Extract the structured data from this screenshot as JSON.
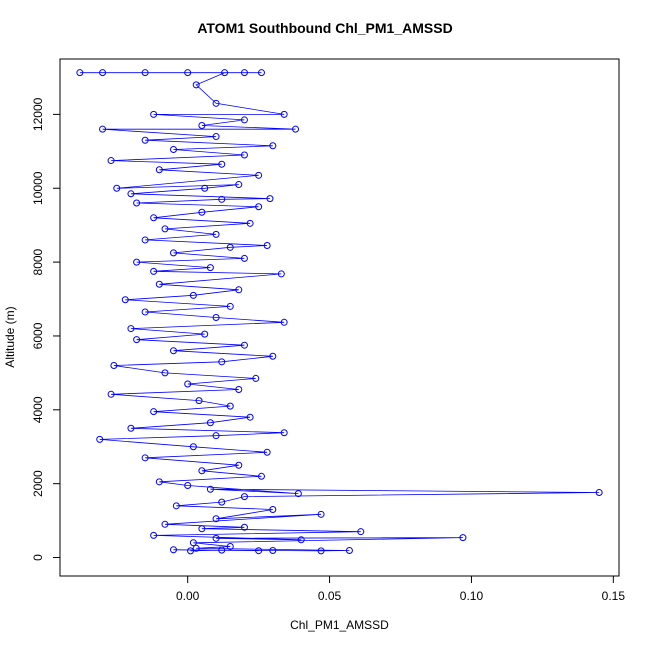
{
  "chart_data": {
    "type": "scatter",
    "title": "ATOM1 Southbound Chl_PM1_AMSSD",
    "xlabel": "Chl_PM1_AMSSD",
    "ylabel": "Altitude (m)",
    "xlim": [
      -0.045,
      0.152
    ],
    "ylim": [
      -500,
      13500
    ],
    "xticks": [
      0.0,
      0.05,
      0.1,
      0.15
    ],
    "xtick_labels": [
      "0.00",
      "0.05",
      "0.10",
      "0.15"
    ],
    "yticks": [
      0,
      2000,
      4000,
      6000,
      8000,
      10000,
      12000
    ],
    "ytick_labels": [
      "0",
      "2000",
      "4000",
      "6000",
      "8000",
      "10000",
      "12000"
    ],
    "marker": "open-circle",
    "line": "connected",
    "color": "#0000ff",
    "grid": false,
    "series": [
      {
        "points": [
          [
            0.001,
            180
          ],
          [
            0.012,
            200
          ],
          [
            0.025,
            185
          ],
          [
            -0.005,
            210
          ],
          [
            0.03,
            190
          ],
          [
            0.047,
            180
          ],
          [
            0.057,
            190
          ],
          [
            0.003,
            250
          ],
          [
            0.015,
            300
          ],
          [
            0.002,
            400
          ],
          [
            0.097,
            540
          ],
          [
            0.01,
            520
          ],
          [
            0.04,
            480
          ],
          [
            -0.012,
            600
          ],
          [
            0.061,
            700
          ],
          [
            0.005,
            780
          ],
          [
            0.02,
            820
          ],
          [
            -0.008,
            900
          ],
          [
            0.047,
            1170
          ],
          [
            0.01,
            1050
          ],
          [
            0.03,
            1300
          ],
          [
            -0.004,
            1400
          ],
          [
            0.012,
            1500
          ],
          [
            0.02,
            1650
          ],
          [
            0.145,
            1760
          ],
          [
            0.008,
            1850
          ],
          [
            0.039,
            1730
          ],
          [
            0.0,
            1950
          ],
          [
            -0.01,
            2050
          ],
          [
            0.026,
            2200
          ],
          [
            0.005,
            2350
          ],
          [
            0.018,
            2500
          ],
          [
            -0.015,
            2700
          ],
          [
            0.028,
            2850
          ],
          [
            0.002,
            3000
          ],
          [
            -0.031,
            3200
          ],
          [
            0.01,
            3300
          ],
          [
            0.034,
            3380
          ],
          [
            -0.02,
            3500
          ],
          [
            0.008,
            3650
          ],
          [
            0.022,
            3800
          ],
          [
            -0.012,
            3950
          ],
          [
            0.015,
            4100
          ],
          [
            0.004,
            4250
          ],
          [
            -0.027,
            4420
          ],
          [
            0.018,
            4550
          ],
          [
            0.0,
            4700
          ],
          [
            0.024,
            4850
          ],
          [
            -0.008,
            5000
          ],
          [
            -0.026,
            5200
          ],
          [
            0.012,
            5300
          ],
          [
            0.03,
            5450
          ],
          [
            -0.005,
            5600
          ],
          [
            0.02,
            5750
          ],
          [
            -0.018,
            5900
          ],
          [
            0.006,
            6050
          ],
          [
            -0.02,
            6200
          ],
          [
            0.034,
            6370
          ],
          [
            0.01,
            6500
          ],
          [
            -0.015,
            6650
          ],
          [
            0.015,
            6800
          ],
          [
            -0.022,
            6980
          ],
          [
            0.002,
            7100
          ],
          [
            0.018,
            7250
          ],
          [
            -0.01,
            7400
          ],
          [
            0.033,
            7680
          ],
          [
            -0.012,
            7750
          ],
          [
            0.008,
            7850
          ],
          [
            -0.018,
            8000
          ],
          [
            0.02,
            8100
          ],
          [
            -0.005,
            8250
          ],
          [
            0.015,
            8400
          ],
          [
            0.028,
            8450
          ],
          [
            -0.015,
            8600
          ],
          [
            0.01,
            8750
          ],
          [
            -0.008,
            8900
          ],
          [
            0.022,
            9050
          ],
          [
            -0.012,
            9200
          ],
          [
            0.005,
            9350
          ],
          [
            0.025,
            9500
          ],
          [
            -0.018,
            9600
          ],
          [
            0.012,
            9700
          ],
          [
            0.029,
            9720
          ],
          [
            -0.02,
            9850
          ],
          [
            0.006,
            10000
          ],
          [
            0.018,
            10100
          ],
          [
            -0.025,
            10000
          ],
          [
            0.025,
            10350
          ],
          [
            -0.01,
            10500
          ],
          [
            0.012,
            10650
          ],
          [
            -0.027,
            10750
          ],
          [
            0.02,
            10900
          ],
          [
            -0.005,
            11050
          ],
          [
            0.03,
            11150
          ],
          [
            -0.015,
            11300
          ],
          [
            0.01,
            11400
          ],
          [
            -0.03,
            11600
          ],
          [
            0.038,
            11600
          ],
          [
            0.005,
            11700
          ],
          [
            0.02,
            11850
          ],
          [
            -0.012,
            12000
          ],
          [
            0.034,
            12000
          ],
          [
            0.01,
            12300
          ],
          [
            0.003,
            12800
          ],
          [
            0.013,
            13130
          ],
          [
            -0.038,
            13130
          ],
          [
            -0.03,
            13130
          ],
          [
            -0.015,
            13130
          ],
          [
            0.0,
            13130
          ],
          [
            0.02,
            13130
          ],
          [
            0.026,
            13130
          ]
        ]
      }
    ]
  }
}
